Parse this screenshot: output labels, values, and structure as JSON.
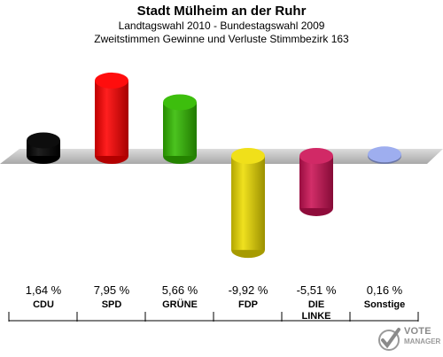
{
  "title": "Stadt Mülheim an der Ruhr",
  "subtitle1": "Landtagswahl 2010 - Bundestagswahl 2009",
  "subtitle2": "Zweitstimmen Gewinne und Verluste Stimmbezirk 163",
  "watermark": {
    "line1": "VOTE",
    "line2": "MANAGER"
  },
  "chart_data": {
    "type": "bar",
    "categories": [
      "CDU",
      "SPD",
      "GRÜNE",
      "FDP",
      "DIE LINKE",
      "Sonstige"
    ],
    "values": [
      1.64,
      7.95,
      5.66,
      -9.92,
      -5.51,
      0.16
    ],
    "value_labels": [
      "1,64 %",
      "7,95 %",
      "5,66 %",
      "-9,92 %",
      "-5,51 %",
      "0,16 %"
    ],
    "colors": [
      "#000000",
      "#ff0000",
      "#33bb00",
      "#eedd00",
      "#cc1155",
      "#99aaee"
    ],
    "ylim": [
      -10,
      10
    ],
    "grid": false,
    "legend": "none"
  }
}
